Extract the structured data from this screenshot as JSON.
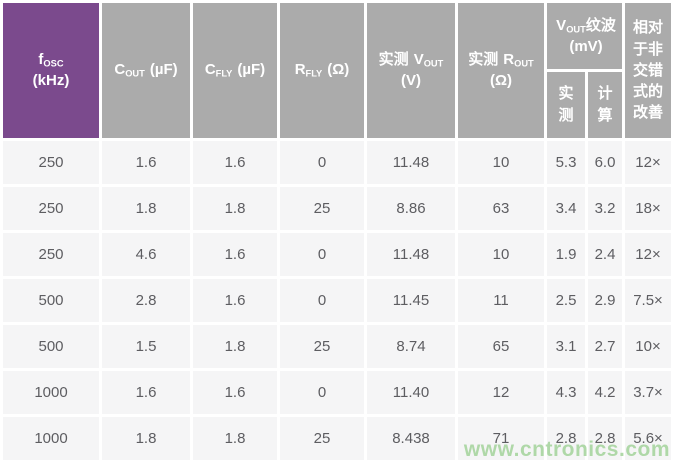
{
  "headers": {
    "fosc": {
      "sym": "f",
      "sub": "OSC",
      "unit": "(kHz)"
    },
    "cout": {
      "sym": "C",
      "sub": "OUT",
      "unit": "(µF)"
    },
    "cfly": {
      "sym": "C",
      "sub": "FLY",
      "unit": "(µF)"
    },
    "rfly": {
      "sym": "R",
      "sub": "FLY",
      "unit": "(Ω)"
    },
    "vout_measured": {
      "prefix": "实测",
      "sym": "V",
      "sub": "OUT",
      "unit": "(V)"
    },
    "rout_measured": {
      "prefix": "实测",
      "sym": "R",
      "sub": "OUT",
      "unit": "(Ω)"
    },
    "ripple": {
      "sym": "V",
      "sub": "OUT",
      "rest": "纹波 (mV)",
      "children": {
        "measured": "实测",
        "calculated": "计算"
      }
    },
    "improvement": {
      "label": "相对于非交错式的改善"
    }
  },
  "chart_data": {
    "type": "table",
    "columns": [
      "fOSC (kHz)",
      "COUT (µF)",
      "CFLY (µF)",
      "RFLY (Ω)",
      "实测 VOUT (V)",
      "实测 ROUT (Ω)",
      "VOUT纹波 (mV) — 实测",
      "VOUT纹波 (mV) — 计算",
      "相对于非交错式的改善"
    ],
    "rows": [
      [
        "250",
        "1.6",
        "1.6",
        "0",
        "11.48",
        "10",
        "5.3",
        "6.0",
        "12×"
      ],
      [
        "250",
        "1.8",
        "1.8",
        "25",
        "8.86",
        "63",
        "3.4",
        "3.2",
        "18×"
      ],
      [
        "250",
        "4.6",
        "1.6",
        "0",
        "11.48",
        "10",
        "1.9",
        "2.4",
        "12×"
      ],
      [
        "500",
        "2.8",
        "1.6",
        "0",
        "11.45",
        "11",
        "2.5",
        "2.9",
        "7.5×"
      ],
      [
        "500",
        "1.5",
        "1.8",
        "25",
        "8.74",
        "65",
        "3.1",
        "2.7",
        "10×"
      ],
      [
        "1000",
        "1.6",
        "1.6",
        "0",
        "11.40",
        "12",
        "4.3",
        "4.2",
        "3.7×"
      ],
      [
        "1000",
        "1.8",
        "1.8",
        "25",
        "8.438",
        "71",
        "2.8",
        "2.8",
        "5.6×"
      ]
    ]
  },
  "watermark": "www.cntronics.com",
  "colors": {
    "header-purple": "#7B4A8D",
    "header-gray": "#ABABAB",
    "row-bg": "#F5F5F6",
    "body-text": "#5D5D61",
    "watermark-green": "#A8D5A0"
  }
}
